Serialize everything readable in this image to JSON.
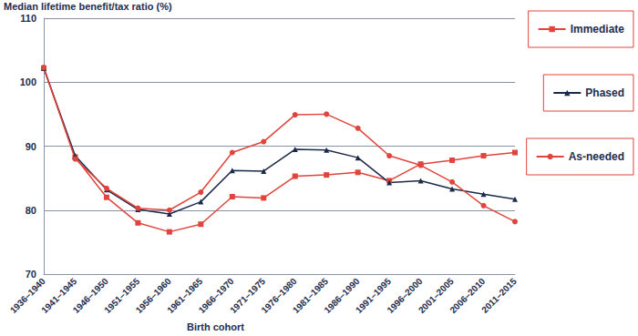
{
  "chart_data": {
    "type": "line",
    "y_label": "Median lifetime benefit/tax ratio (%)",
    "x_label": "Birth cohort",
    "categories": [
      "1936–1940",
      "1941–1945",
      "1946–1950",
      "1951–1955",
      "1956–1960",
      "1961–1965",
      "1966–1970",
      "1971–1975",
      "1976–1980",
      "1981–1985",
      "1986–1990",
      "1991–1995",
      "1996–2000",
      "2001–2005",
      "2006–2010",
      "2011–2015"
    ],
    "series": [
      {
        "name": "Immediate",
        "color": "#e0443c",
        "marker": "square",
        "values": [
          102.2,
          88.3,
          82.0,
          78.0,
          76.6,
          77.8,
          82.1,
          81.9,
          85.3,
          85.5,
          85.9,
          84.6,
          87.2,
          87.8,
          88.5,
          89.0
        ]
      },
      {
        "name": "Phased",
        "color": "#1a2a4a",
        "marker": "triangle",
        "values": [
          102.2,
          88.5,
          83.2,
          80.1,
          79.4,
          81.3,
          86.2,
          86.1,
          89.5,
          89.4,
          88.2,
          84.3,
          84.6,
          83.3,
          82.5,
          81.7
        ]
      },
      {
        "name": "As-needed",
        "color": "#e0443c",
        "marker": "circle",
        "values": [
          102.3,
          88.0,
          83.4,
          80.3,
          80.0,
          82.8,
          89.0,
          90.7,
          94.9,
          95.0,
          92.8,
          88.5,
          87.0,
          84.4,
          80.7,
          78.2
        ]
      }
    ],
    "ylim": [
      70,
      110
    ],
    "yticks": [
      70,
      80,
      90,
      100,
      110
    ],
    "grid": true,
    "legend": "right"
  }
}
